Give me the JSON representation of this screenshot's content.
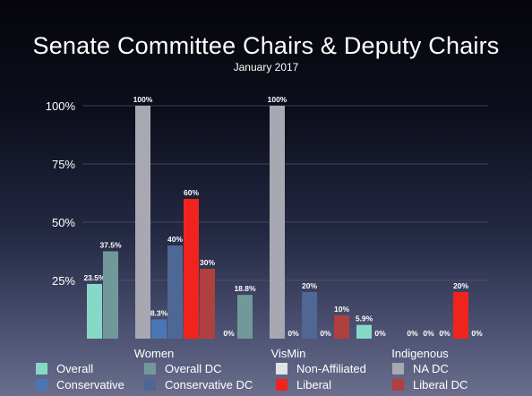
{
  "chart_data": {
    "type": "bar",
    "title": "Senate Committee Chairs & Deputy Chairs",
    "subtitle": "January 2017",
    "categories": [
      "Women",
      "VisMin",
      "Indigenous"
    ],
    "ylim": [
      0,
      100
    ],
    "yticks": [
      25,
      50,
      75,
      100
    ],
    "ytick_labels": [
      "25%",
      "50%",
      "75%",
      "100%"
    ],
    "grid": true,
    "legend_position": "bottom",
    "series": [
      {
        "name": "Overall",
        "color": "#86d9c6",
        "values": [
          23.5,
          0,
          5.9
        ],
        "labels": [
          "23.5%",
          "0%",
          "5.9%"
        ]
      },
      {
        "name": "Overall DC",
        "color": "#72999a",
        "values": [
          37.5,
          18.8,
          0
        ],
        "labels": [
          "37.5%",
          "18.8%",
          "0%"
        ]
      },
      {
        "name": "Non-Affiliated",
        "color": "#e2e3e9",
        "values": [
          0,
          0,
          0
        ],
        "labels": [
          "",
          "",
          ""
        ]
      },
      {
        "name": "NA DC",
        "color": "#a7a8b2",
        "values": [
          100,
          100,
          0
        ],
        "labels": [
          "100%",
          "100%",
          "0%"
        ]
      },
      {
        "name": "Conservative",
        "color": "#4a76b6",
        "values": [
          8.3,
          0,
          0
        ],
        "labels": [
          "8.3%",
          "0%",
          "0%"
        ]
      },
      {
        "name": "Conservative DC",
        "color": "#4e6795",
        "values": [
          40,
          20,
          0
        ],
        "labels": [
          "40%",
          "20%",
          "0%"
        ]
      },
      {
        "name": "Liberal",
        "color": "#f1231d",
        "values": [
          60,
          0,
          20
        ],
        "labels": [
          "60%",
          "0%",
          "20%"
        ]
      },
      {
        "name": "Liberal DC",
        "color": "#b0403f",
        "values": [
          30,
          10,
          0
        ],
        "labels": [
          "30%",
          "10%",
          "0%"
        ]
      }
    ],
    "legend_order": [
      "Overall",
      "Overall DC",
      "Non-Affiliated",
      "NA DC",
      "Conservative",
      "Conservative DC",
      "Liberal",
      "Liberal DC"
    ]
  }
}
